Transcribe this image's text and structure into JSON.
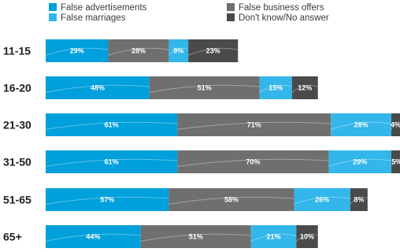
{
  "chart_data": {
    "type": "bar",
    "stacked": true,
    "orientation": "horizontal",
    "legend": [
      {
        "name": "False advertisements",
        "color": "#00a0dc"
      },
      {
        "name": "False marriages",
        "color": "#33b6ea"
      },
      {
        "name": "False business offers",
        "color": "#6f6f6f"
      },
      {
        "name": "Don't know/No answer",
        "color": "#4a4a4a"
      }
    ],
    "categories": [
      "11-15",
      "16-20",
      "21-30",
      "31-50",
      "51-65",
      "65+"
    ],
    "series": [
      {
        "name": "False advertisements",
        "color": "#00a0dc",
        "values": [
          29,
          48,
          61,
          61,
          57,
          44
        ]
      },
      {
        "name": "False business offers",
        "color": "#6f6f6f",
        "values": [
          28,
          51,
          71,
          70,
          58,
          51
        ]
      },
      {
        "name": "False marriages",
        "color": "#33b6ea",
        "values": [
          9,
          15,
          28,
          29,
          26,
          21
        ]
      },
      {
        "name": "Don't know/No answer",
        "color": "#4a4a4a",
        "values": [
          23,
          12,
          4,
          5,
          8,
          10
        ]
      }
    ],
    "value_suffix": "%",
    "xlim": [
      0,
      164
    ],
    "grid": false
  }
}
